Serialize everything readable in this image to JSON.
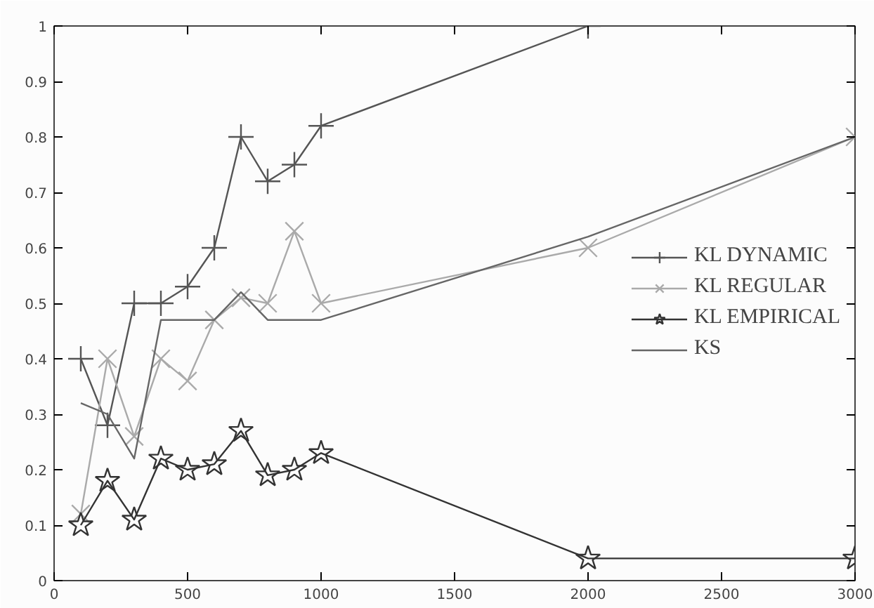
{
  "chart_data": {
    "type": "line",
    "x": [
      100,
      200,
      300,
      400,
      500,
      600,
      700,
      800,
      900,
      1000,
      2000,
      3000
    ],
    "series": [
      {
        "name": "KL DYNAMIC",
        "color": "#555555",
        "marker": "cross",
        "values": [
          0.4,
          0.28,
          0.5,
          0.5,
          0.53,
          0.6,
          0.8,
          0.72,
          0.75,
          0.82,
          1.0,
          null
        ]
      },
      {
        "name": "KL REGULAR",
        "color": "#aaaaaa",
        "marker": "x",
        "values": [
          0.12,
          0.4,
          0.26,
          0.4,
          0.36,
          0.47,
          0.51,
          0.5,
          0.63,
          0.5,
          0.6,
          0.8
        ]
      },
      {
        "name": "KL EMPIRICAL",
        "color": "#333333",
        "marker": "star",
        "values": [
          0.1,
          0.18,
          0.11,
          0.22,
          0.2,
          0.21,
          0.27,
          0.19,
          0.2,
          0.23,
          0.04,
          0.04
        ]
      },
      {
        "name": "KS",
        "color": "#666666",
        "marker": "none",
        "values": [
          0.32,
          0.3,
          0.22,
          0.47,
          0.47,
          0.47,
          0.52,
          0.47,
          0.47,
          0.47,
          0.62,
          0.8
        ]
      }
    ],
    "xlim": [
      0,
      3000
    ],
    "ylim": [
      0,
      1
    ],
    "xticks": [
      0,
      500,
      1000,
      1500,
      2000,
      2500,
      3000
    ],
    "yticks": [
      0,
      0.1,
      0.2,
      0.3,
      0.4,
      0.5,
      0.6,
      0.7,
      0.8,
      0.9,
      1
    ],
    "grid": false,
    "legend": "right",
    "line_style": "solid"
  }
}
